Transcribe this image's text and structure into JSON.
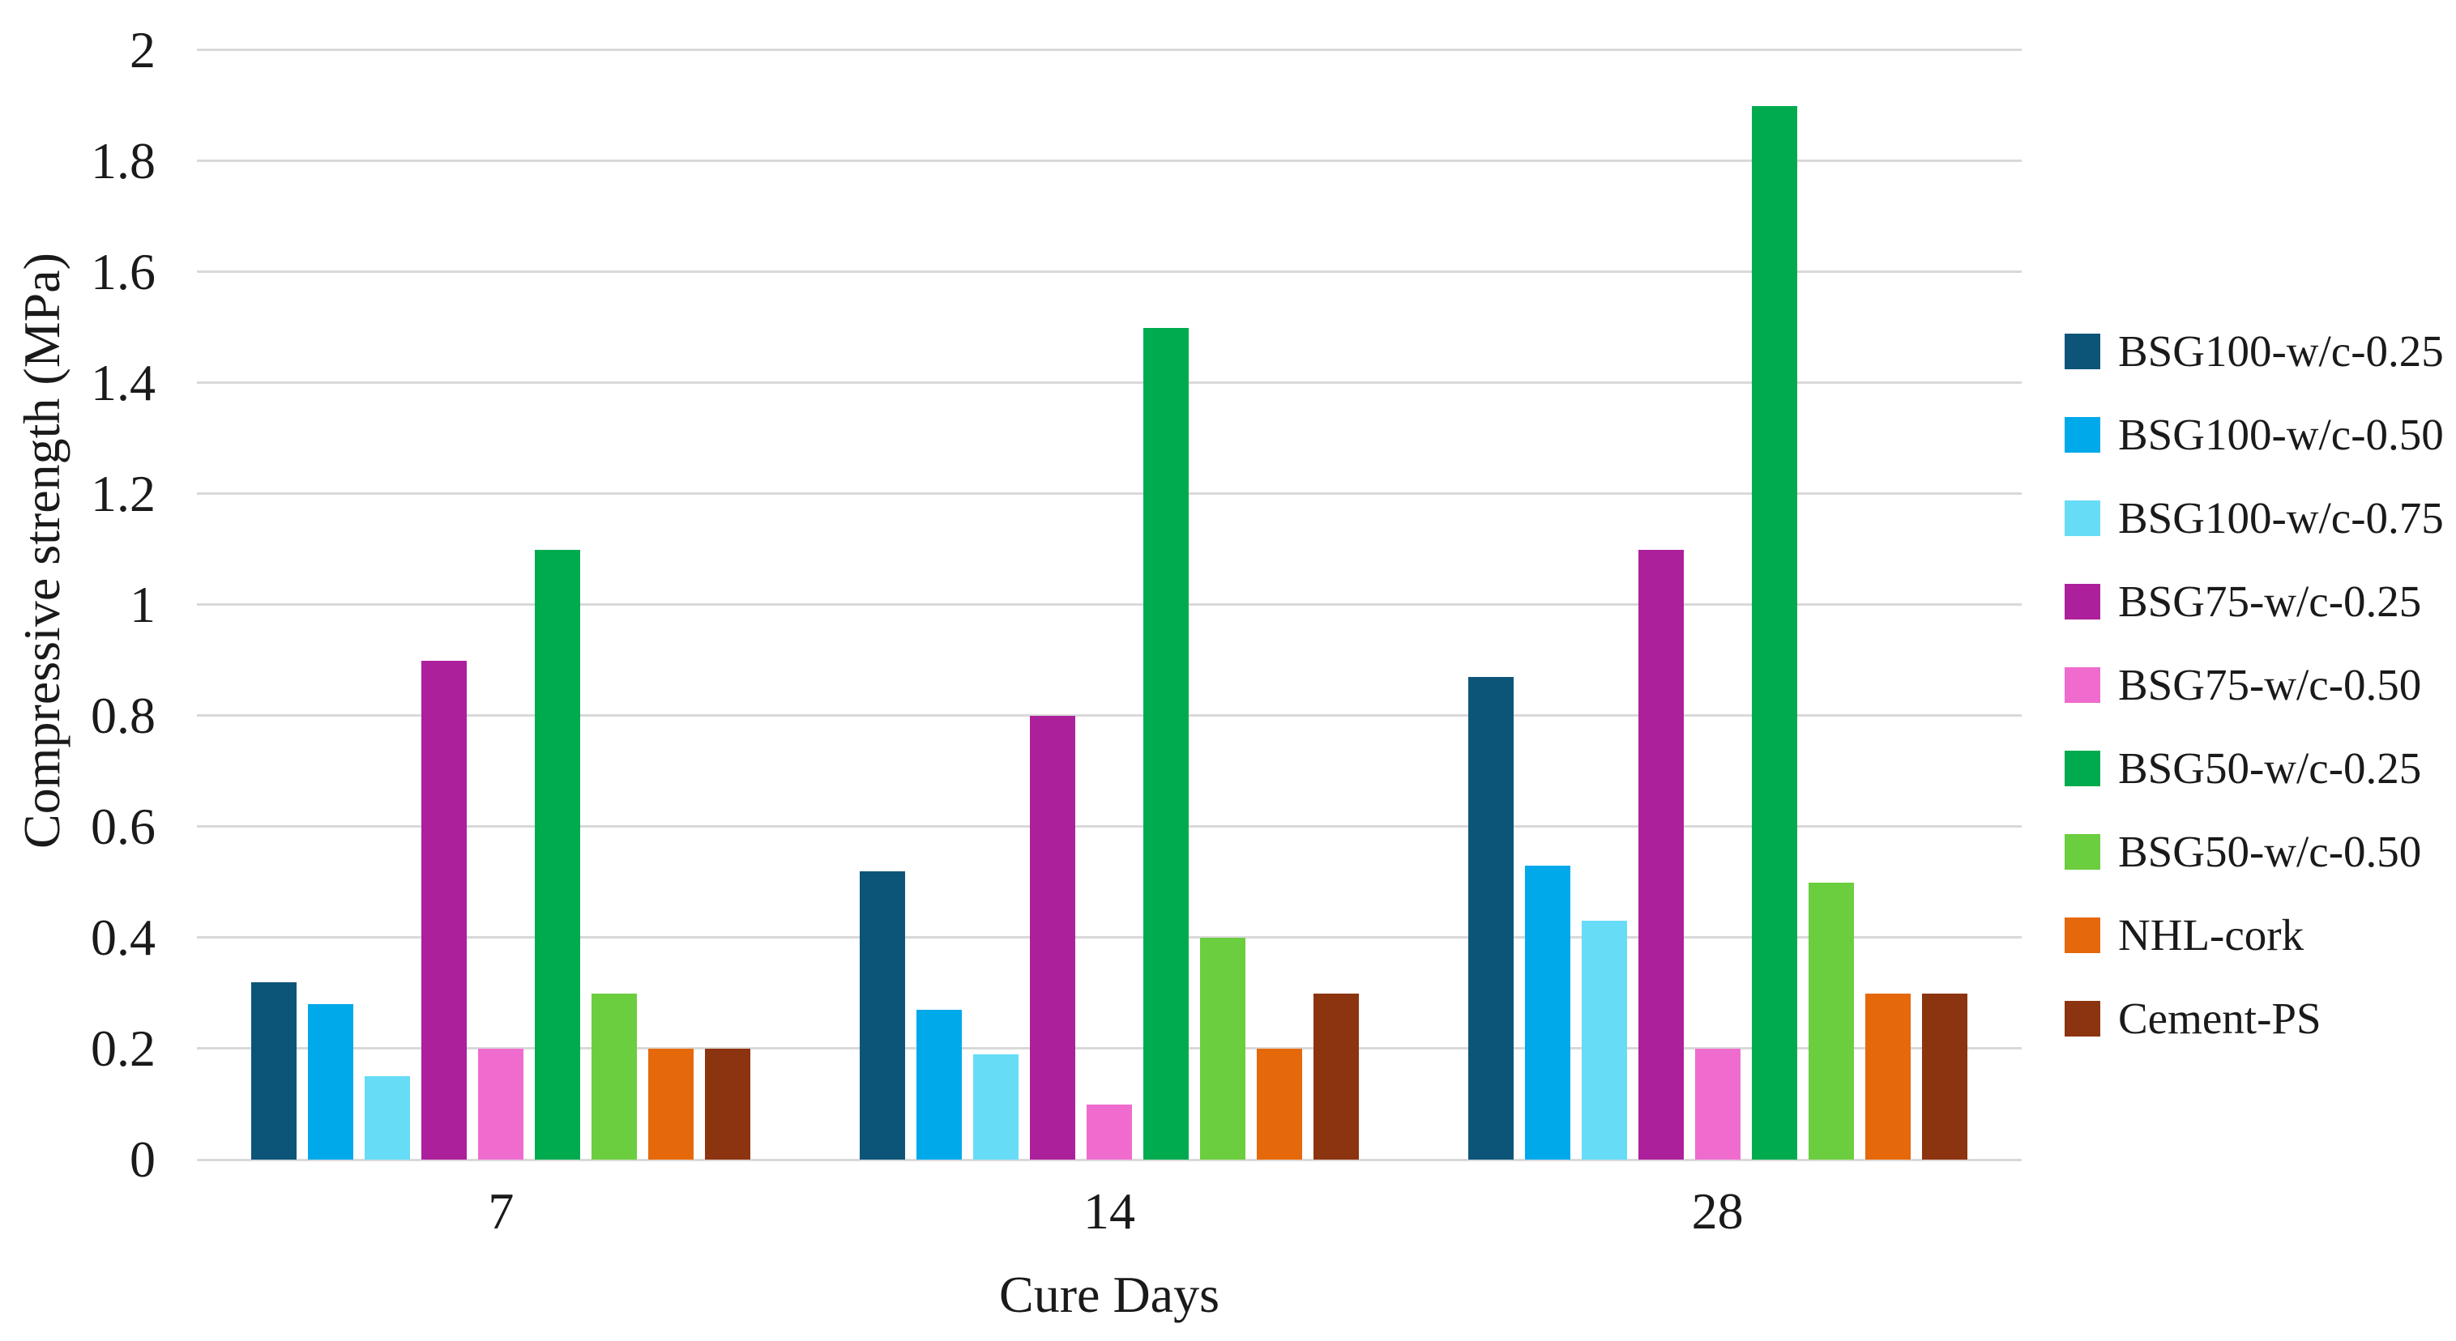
{
  "chart_data": {
    "type": "bar",
    "title": "",
    "xlabel": "Cure Days",
    "ylabel": "Compressive strength (MPa)",
    "categories": [
      "7",
      "14",
      "28"
    ],
    "series": [
      {
        "name": "BSG100-w/c-0.25",
        "color": "#0d5578",
        "values": [
          0.32,
          0.52,
          0.87
        ]
      },
      {
        "name": "BSG100-w/c-0.50",
        "color": "#00a9ea",
        "values": [
          0.28,
          0.27,
          0.53
        ]
      },
      {
        "name": "BSG100-w/c-0.75",
        "color": "#67dcf7",
        "values": [
          0.15,
          0.19,
          0.43
        ]
      },
      {
        "name": "BSG75-w/c-0.25",
        "color": "#ad209c",
        "values": [
          0.9,
          0.8,
          1.1
        ]
      },
      {
        "name": "BSG75-w/c-0.50",
        "color": "#ef6cce",
        "values": [
          0.2,
          0.1,
          0.2
        ]
      },
      {
        "name": "BSG50-w/c-0.25",
        "color": "#00ab4f",
        "values": [
          1.1,
          1.5,
          1.9
        ]
      },
      {
        "name": "BSG50-w/c-0.50",
        "color": "#6bce3e",
        "values": [
          0.3,
          0.4,
          0.5
        ]
      },
      {
        "name": "NHL-cork",
        "color": "#e5690a",
        "values": [
          0.2,
          0.2,
          0.3
        ]
      },
      {
        "name": "Cement-PS",
        "color": "#8c3410",
        "values": [
          0.2,
          0.3,
          0.3
        ]
      }
    ],
    "ylim": [
      0,
      2
    ],
    "ytick_values": [
      0,
      0.2,
      0.4,
      0.6,
      0.8,
      1,
      1.2,
      1.4,
      1.6,
      1.8,
      2
    ],
    "ytick_labels": [
      "0",
      "0.2",
      "0.4",
      "0.6",
      "0.8",
      "1",
      "1.2",
      "1.4",
      "1.6",
      "1.8",
      "2"
    ],
    "grid": true,
    "legend_position": "right"
  },
  "colors": {
    "background": "#ffffff",
    "gridline": "#d9d9d9",
    "axis_line": "#d9d9d9",
    "text": "#1a1a1a"
  }
}
